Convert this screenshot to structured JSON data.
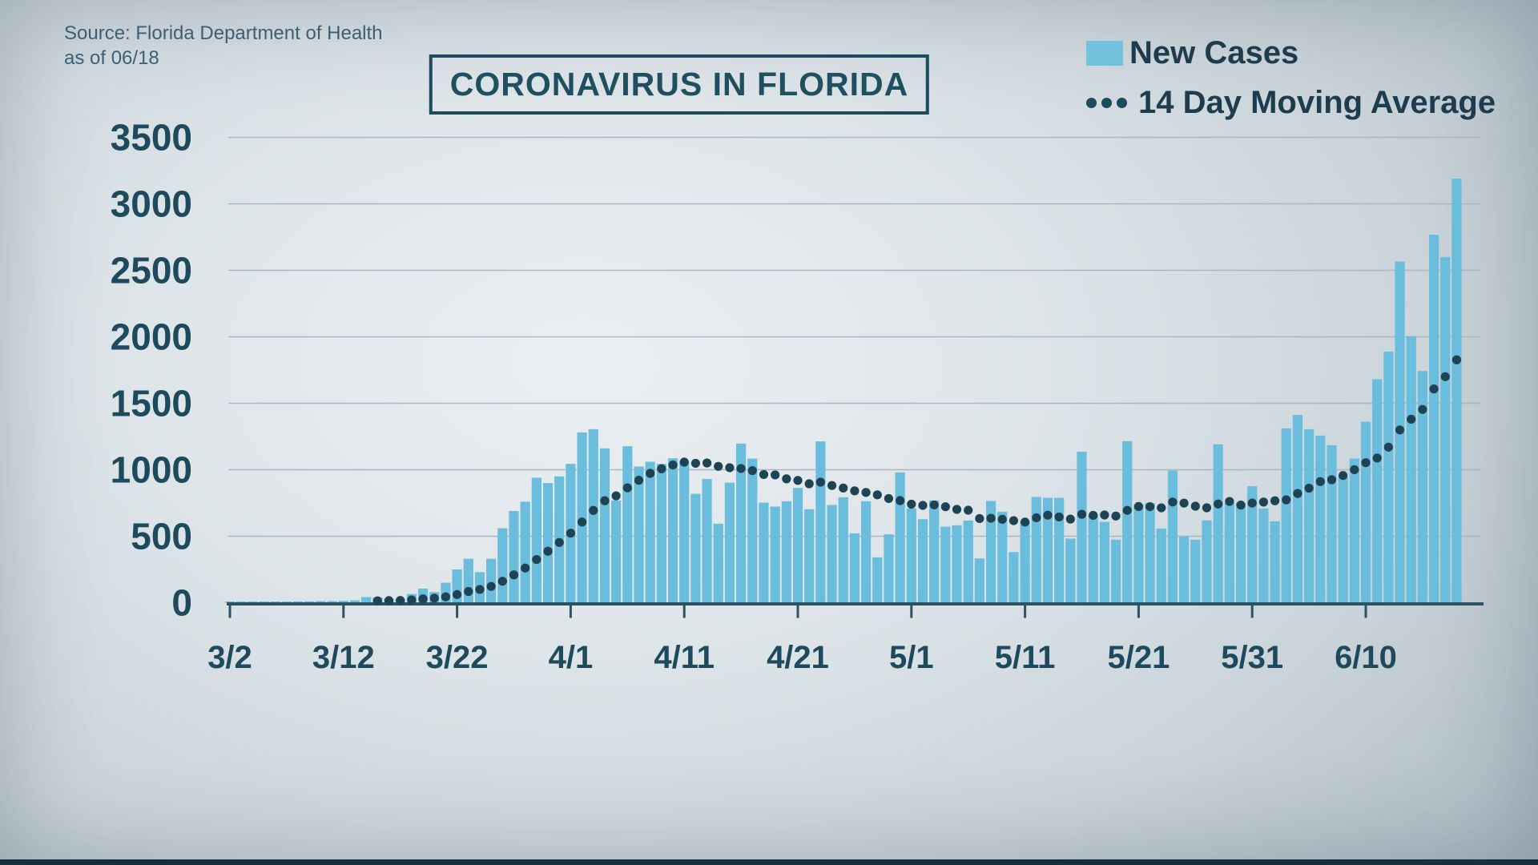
{
  "source": {
    "line1": "Source: Florida Department of Health",
    "line2": "as of 06/18"
  },
  "title": "CORONAVIRUS IN FLORIDA",
  "legend": [
    {
      "label": "New Cases",
      "marker": "swatch"
    },
    {
      "label": "14 Day Moving Average",
      "marker": "dots"
    }
  ],
  "colors": {
    "bar": "#6abddc",
    "legend_swatch": "#72c2dd",
    "dot": "#1d4354",
    "label_text": "#1d4a5c",
    "grid": "#a8b3ba",
    "axis": "#2b5363",
    "title_text": "#20505f",
    "bottom_strip": "#14303d"
  },
  "chart_data": {
    "type": "bar",
    "title": "CORONAVIRUS IN FLORIDA",
    "xlabel": "",
    "ylabel": "",
    "ylim": [
      0,
      3500
    ],
    "y_ticks": [
      0,
      500,
      1000,
      1500,
      2000,
      2500,
      3000,
      3500
    ],
    "grid": "horizontal",
    "legend_position": "top-right",
    "x_tick_labels": [
      "3/2",
      "3/12",
      "3/22",
      "4/1",
      "4/11",
      "4/21",
      "5/1",
      "5/11",
      "5/21",
      "5/31",
      "6/10"
    ],
    "x_tick_every_days": 10,
    "categories": [
      "3/2",
      "3/3",
      "3/4",
      "3/5",
      "3/6",
      "3/7",
      "3/8",
      "3/9",
      "3/10",
      "3/11",
      "3/12",
      "3/13",
      "3/14",
      "3/15",
      "3/16",
      "3/17",
      "3/18",
      "3/19",
      "3/20",
      "3/21",
      "3/22",
      "3/23",
      "3/24",
      "3/25",
      "3/26",
      "3/27",
      "3/28",
      "3/29",
      "3/30",
      "3/31",
      "4/1",
      "4/2",
      "4/3",
      "4/4",
      "4/5",
      "4/6",
      "4/7",
      "4/8",
      "4/9",
      "4/10",
      "4/11",
      "4/12",
      "4/13",
      "4/14",
      "4/15",
      "4/16",
      "4/17",
      "4/18",
      "4/19",
      "4/20",
      "4/21",
      "4/22",
      "4/23",
      "4/24",
      "4/25",
      "4/26",
      "4/27",
      "4/28",
      "4/29",
      "4/30",
      "5/1",
      "5/2",
      "5/3",
      "5/4",
      "5/5",
      "5/6",
      "5/7",
      "5/8",
      "5/9",
      "5/10",
      "5/11",
      "5/12",
      "5/13",
      "5/14",
      "5/15",
      "5/16",
      "5/17",
      "5/18",
      "5/19",
      "5/20",
      "5/21",
      "5/22",
      "5/23",
      "5/24",
      "5/25",
      "5/26",
      "5/27",
      "5/28",
      "5/29",
      "5/30",
      "5/31",
      "6/1",
      "6/2",
      "6/3",
      "6/4",
      "6/5",
      "6/6",
      "6/7",
      "6/8",
      "6/9",
      "6/10",
      "6/11",
      "6/12",
      "6/13",
      "6/14",
      "6/15",
      "6/16",
      "6/17",
      "6/18"
    ],
    "series": [
      {
        "name": "New Cases",
        "type": "bar",
        "values": [
          8,
          9,
          4,
          4,
          5,
          9,
          10,
          10,
          12,
          12,
          14,
          18,
          42,
          40,
          30,
          28,
          66,
          106,
          80,
          150,
          250,
          330,
          230,
          330,
          560,
          690,
          760,
          940,
          900,
          950,
          1044,
          1281,
          1305,
          1161,
          769,
          1177,
          1024,
          1060,
          1044,
          1086,
          1060,
          819,
          930,
          594,
          903,
          1197,
          1084,
          753,
          723,
          763,
          863,
          703,
          1213,
          735,
          793,
          522,
          763,
          341,
          514,
          980,
          709,
          628,
          769,
          572,
          582,
          618,
          333,
          765,
          683,
          381,
          614,
          795,
          789,
          789,
          482,
          1136,
          659,
          608,
          474,
          1215,
          739,
          749,
          558,
          994,
          498,
          474,
          619,
          1191,
          749,
          749,
          876,
          709,
          612,
          1311,
          1412,
          1305,
          1257,
          1185,
          944,
          1084,
          1361,
          1681,
          1888,
          2566,
          2004,
          1743,
          2767,
          2600,
          3190
        ]
      },
      {
        "name": "14 Day Moving Average",
        "type": "dotted-line",
        "derived_from": "New Cases",
        "moving_average_window": 14
      }
    ]
  }
}
